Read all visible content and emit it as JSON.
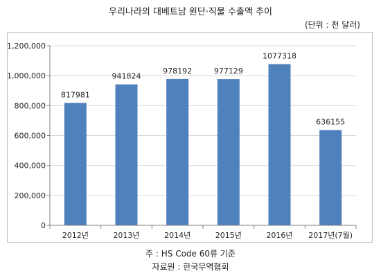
{
  "title": "우리나라의 대베트남 원단·직물 수출액 추이",
  "unit_label": "(단위 : 천 달러)",
  "notes": {
    "source_code": "주 : HS Code 60류 기준",
    "source": "자료원 : 한국무역협회"
  },
  "colors": {
    "bar": "#4f81bd",
    "grid": "#d9d9d9",
    "axis": "#808080"
  },
  "chart_data": {
    "type": "bar",
    "categories": [
      "2012년",
      "2013년",
      "2014년",
      "2015년",
      "2016년",
      "2017년(7월)"
    ],
    "values": [
      817981,
      941824,
      978192,
      977129,
      1077318,
      636155
    ],
    "data_labels": [
      "817981",
      "941824",
      "978192",
      "977129",
      "1077318",
      "636155"
    ],
    "y_ticks": [
      0,
      200000,
      400000,
      600000,
      800000,
      1000000,
      1200000
    ],
    "y_tick_labels": [
      "0",
      "200,000",
      "400,000",
      "600,000",
      "800,000",
      "1,000,000",
      "1,200,000"
    ],
    "ylim": [
      0,
      1200000
    ],
    "grid": true,
    "legend": false
  }
}
